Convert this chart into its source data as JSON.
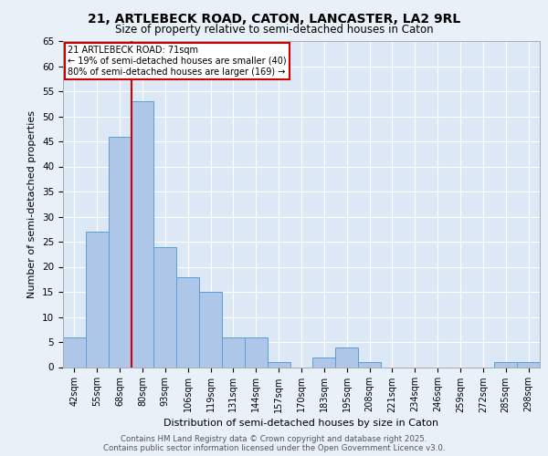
{
  "title_line1": "21, ARTLEBECK ROAD, CATON, LANCASTER, LA2 9RL",
  "title_line2": "Size of property relative to semi-detached houses in Caton",
  "xlabel": "Distribution of semi-detached houses by size in Caton",
  "ylabel": "Number of semi-detached properties",
  "categories": [
    "42sqm",
    "55sqm",
    "68sqm",
    "80sqm",
    "93sqm",
    "106sqm",
    "119sqm",
    "131sqm",
    "144sqm",
    "157sqm",
    "170sqm",
    "183sqm",
    "195sqm",
    "208sqm",
    "221sqm",
    "234sqm",
    "246sqm",
    "259sqm",
    "272sqm",
    "285sqm",
    "298sqm"
  ],
  "values": [
    6,
    27,
    46,
    53,
    24,
    18,
    15,
    6,
    6,
    1,
    0,
    2,
    4,
    1,
    0,
    0,
    0,
    0,
    0,
    1,
    1
  ],
  "bar_color": "#aec6e8",
  "bar_edgecolor": "#5a9fd4",
  "property_line_index": 2,
  "property_label": "21 ARTLEBECK ROAD: 71sqm",
  "smaller_pct": "19%",
  "smaller_count": 40,
  "larger_pct": "80%",
  "larger_count": 169,
  "annotation_box_color": "#cc0000",
  "vline_color": "#cc0000",
  "background_color": "#e8f0f8",
  "plot_bg_color": "#dce8f5",
  "footer_line1": "Contains HM Land Registry data © Crown copyright and database right 2025.",
  "footer_line2": "Contains public sector information licensed under the Open Government Licence v3.0.",
  "ylim": [
    0,
    65
  ],
  "yticks": [
    0,
    5,
    10,
    15,
    20,
    25,
    30,
    35,
    40,
    45,
    50,
    55,
    60,
    65
  ]
}
